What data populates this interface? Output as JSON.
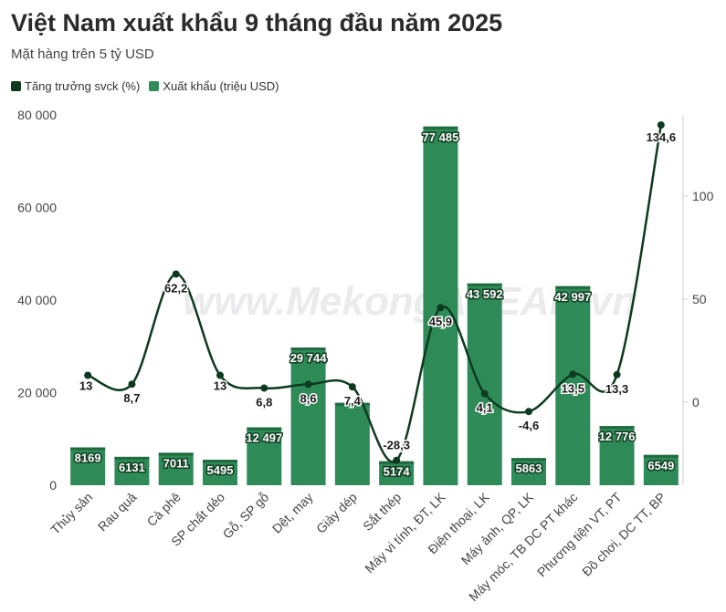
{
  "chart_data": {
    "type": "bar",
    "title": "Việt Nam xuất khẩu 9 tháng đầu năm 2025",
    "subtitle": "Mặt hàng trên 5 tỷ USD",
    "categories": [
      "Thủy sản",
      "Rau quả",
      "Cà phê",
      "SP chất dẻo",
      "Gỗ, SP gỗ",
      "Dệt, may",
      "Giày dép",
      "Sắt thép",
      "Máy vi tính, ĐT, LK",
      "Điện thoại, LK",
      "Máy ảnh, QP, LK",
      "Máy móc, TB DC PT khác",
      "Phương tiện VT, PT",
      "Đồ chơi, DC TT, BP"
    ],
    "series": [
      {
        "name": "Tăng trưởng svck (%)",
        "type": "line",
        "axis": "right",
        "values": [
          13,
          8.7,
          62.2,
          13,
          6.8,
          8.6,
          7.4,
          -28.3,
          45.9,
          4.1,
          -4.6,
          13.5,
          13.3,
          134.6
        ],
        "labels": [
          "13",
          "8,7",
          "62,2",
          "13",
          "6,8",
          "8,6",
          "7,4",
          "-28,3",
          "45,9",
          "4,1",
          "-4,6",
          "13,5",
          "13,3",
          "134,6"
        ],
        "color": "#0d3a1f"
      },
      {
        "name": "Xuất khẩu (triệu USD)",
        "type": "bar",
        "axis": "left",
        "values": [
          8169,
          6131,
          7011,
          5495,
          12497,
          29744,
          17800,
          5174,
          77485,
          43592,
          5863,
          42997,
          12776,
          6549
        ],
        "labels": [
          "8169",
          "6131",
          "7011",
          "5495",
          "12 497",
          "29 744",
          "",
          "5174",
          "77 485",
          "43 592",
          "5863",
          "42 997",
          "12 776",
          "6549"
        ],
        "color": "#2e8b57"
      }
    ],
    "left_axis": {
      "range": [
        0,
        80000
      ],
      "ticks": [
        0,
        20000,
        40000,
        60000,
        80000
      ],
      "tick_labels": [
        "0",
        "20 000",
        "40 000",
        "60 000",
        "80 000"
      ]
    },
    "right_axis": {
      "range": [
        -40.4,
        139.5
      ],
      "ticks": [
        0,
        50,
        100
      ],
      "tick_labels": [
        "0",
        "50",
        "100"
      ]
    },
    "grid": false,
    "legend": "top-left"
  },
  "watermark": "www.MekongASEAN.vn"
}
